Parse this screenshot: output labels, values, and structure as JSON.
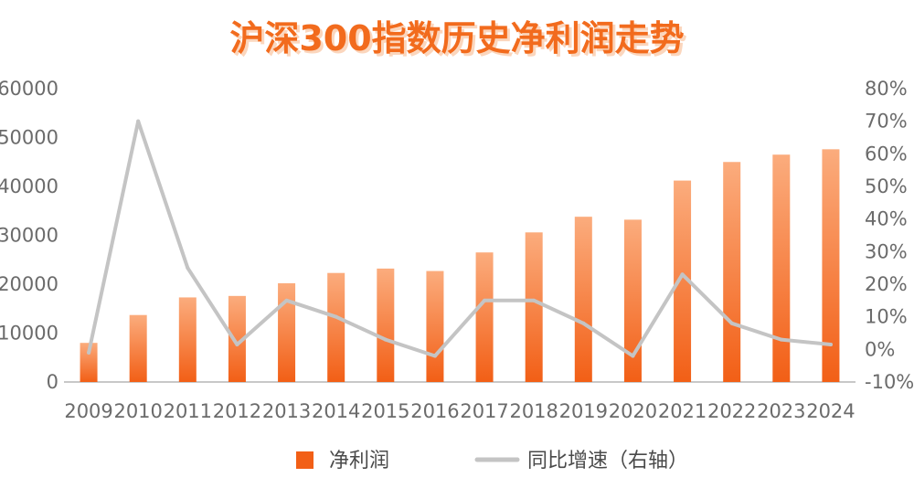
{
  "title": "沪深300指数历史净利润走势",
  "colors": {
    "title": "#f26b1d",
    "title_shadow": "#fbd6bd",
    "bar_top": "#fbac7d",
    "bar_bottom": "#f25f16",
    "line": "#c4c4c4",
    "axis": "#b5b5b5",
    "text": "#6b6b6b"
  },
  "legend": {
    "bar_label": "净利润",
    "line_label": "同比增速（右轴）"
  },
  "chart_data": {
    "type": "bar",
    "title": "沪深300指数历史净利润走势",
    "categories": [
      "2009",
      "2010",
      "2011",
      "2012",
      "2013",
      "2014",
      "2015",
      "2016",
      "2017",
      "2018",
      "2019",
      "2020",
      "2021",
      "2022",
      "2023",
      "2024"
    ],
    "series": [
      {
        "name": "净利润",
        "type": "bar",
        "axis": "left",
        "values": [
          8000,
          13700,
          17300,
          17600,
          20200,
          22300,
          23200,
          22700,
          26500,
          30600,
          33800,
          33200,
          41200,
          45000,
          46500,
          47600
        ]
      },
      {
        "name": "同比增速（右轴）",
        "type": "line",
        "axis": "right",
        "unit": "%",
        "values": [
          -1,
          70,
          25,
          1.5,
          15,
          10,
          3,
          -2,
          15,
          15,
          8,
          -2,
          23,
          8,
          3,
          1.5
        ]
      }
    ],
    "y_left": {
      "min": 0,
      "max": 60000,
      "ticks": [
        "0",
        "10000",
        "20000",
        "30000",
        "40000",
        "50000",
        "60000"
      ]
    },
    "y_right": {
      "min": -10,
      "max": 80,
      "ticks": [
        "-10%",
        "0%",
        "10%",
        "20%",
        "30%",
        "40%",
        "50%",
        "60%",
        "70%",
        "80%"
      ]
    },
    "grid": false,
    "legend_position": "bottom-center"
  }
}
